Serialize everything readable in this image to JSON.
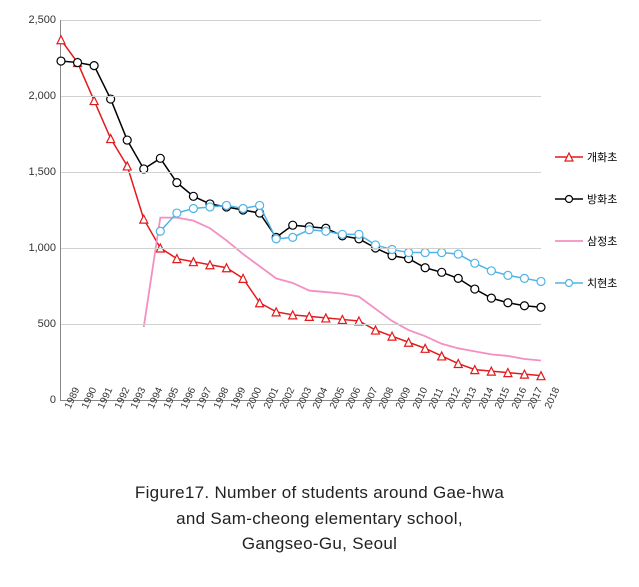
{
  "chart": {
    "type": "line",
    "background_color": "#ffffff",
    "grid_color": "#d0d0d0",
    "axis_color": "#888888",
    "ylim": [
      0,
      2500
    ],
    "ytick_step": 500,
    "yticks": [
      "0",
      "500",
      "1,000",
      "1,500",
      "2,000",
      "2,500"
    ],
    "ytick_fontsize": 11,
    "xtick_fontsize": 10,
    "xtick_rotation": -65,
    "categories": [
      "1989",
      "1990",
      "1991",
      "1992",
      "1993",
      "1994",
      "1995",
      "1996",
      "1997",
      "1998",
      "1999",
      "2000",
      "2001",
      "2002",
      "2003",
      "2004",
      "2005",
      "2006",
      "2007",
      "2008",
      "2009",
      "2010",
      "2011",
      "2012",
      "2013",
      "2014",
      "2015",
      "2016",
      "2017",
      "2018"
    ],
    "series": [
      {
        "name": "개화초",
        "color": "#e31a1c",
        "marker": "triangle",
        "marker_size": 4,
        "line_width": 1.5,
        "values": [
          2370,
          2220,
          1970,
          1720,
          1540,
          1190,
          1000,
          930,
          910,
          890,
          870,
          800,
          640,
          580,
          560,
          550,
          540,
          530,
          520,
          460,
          420,
          380,
          340,
          290,
          240,
          200,
          190,
          180,
          170,
          160
        ]
      },
      {
        "name": "방화초",
        "color": "#000000",
        "marker": "circle",
        "marker_size": 4,
        "line_width": 1.5,
        "values": [
          2230,
          2220,
          2200,
          1980,
          1710,
          1520,
          1590,
          1430,
          1340,
          1290,
          1270,
          1250,
          1230,
          1070,
          1150,
          1140,
          1130,
          1080,
          1060,
          1000,
          950,
          930,
          870,
          840,
          800,
          730,
          670,
          640,
          620,
          610
        ]
      },
      {
        "name": "삼정초",
        "color": "#f48fc2",
        "marker": "none",
        "marker_size": 0,
        "line_width": 1.8,
        "values": [
          null,
          null,
          null,
          null,
          null,
          480,
          1200,
          1200,
          1180,
          1130,
          1050,
          960,
          880,
          800,
          770,
          720,
          710,
          700,
          680,
          600,
          520,
          460,
          420,
          370,
          340,
          320,
          300,
          290,
          270,
          260
        ]
      },
      {
        "name": "치현초",
        "color": "#4fb3e8",
        "marker": "circle",
        "marker_size": 4,
        "line_width": 1.5,
        "values": [
          null,
          null,
          null,
          null,
          null,
          null,
          1110,
          1230,
          1260,
          1270,
          1280,
          1260,
          1280,
          1060,
          1070,
          1120,
          1110,
          1090,
          1090,
          1020,
          990,
          970,
          970,
          970,
          960,
          900,
          850,
          820,
          800,
          780
        ]
      }
    ],
    "legend_position": "right",
    "legend_fontsize": 11
  },
  "caption": {
    "line1": "Figure17. Number of students around Gae-hwa",
    "line2": "and Sam-cheong elementary school,",
    "line3": "Gangseo-Gu, Seoul",
    "fontsize": 17
  }
}
